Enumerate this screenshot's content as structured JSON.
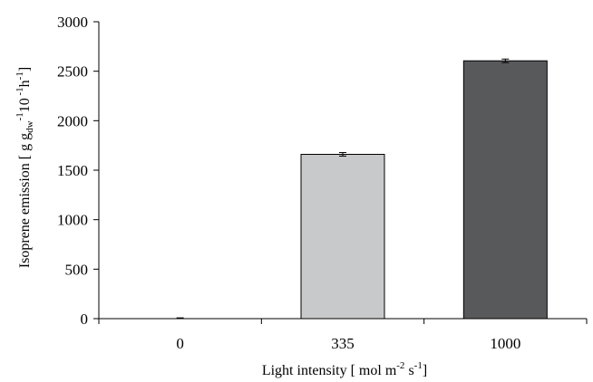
{
  "chart_data": {
    "type": "bar",
    "categories": [
      "0",
      "335",
      "1000"
    ],
    "values": [
      0,
      1660,
      2605
    ],
    "errors": [
      8,
      18,
      18
    ],
    "bar_colors": [
      "#ffffff",
      "#c8c9cb",
      "#58595b"
    ],
    "ylim": [
      0,
      3000
    ],
    "yticks": [
      0,
      500,
      1000,
      1500,
      2000,
      2500,
      3000
    ],
    "ytick_labels": [
      "0",
      "500",
      "1000",
      "1500",
      "2000",
      "2500",
      "3000"
    ],
    "xlabel": {
      "main": "Light intensity [   mol m",
      "sup1": "-2",
      "mid": " s",
      "sup2": "-1",
      "end": "]"
    },
    "ylabel": {
      "main": "Isoprene emission [   g g",
      "sub": "dw",
      "sup1": "-1",
      "mid": "10",
      "sup2": " -1",
      "mid2": "h",
      "sup3": "-1",
      "end": "]"
    },
    "grid": false,
    "legend": "none"
  }
}
